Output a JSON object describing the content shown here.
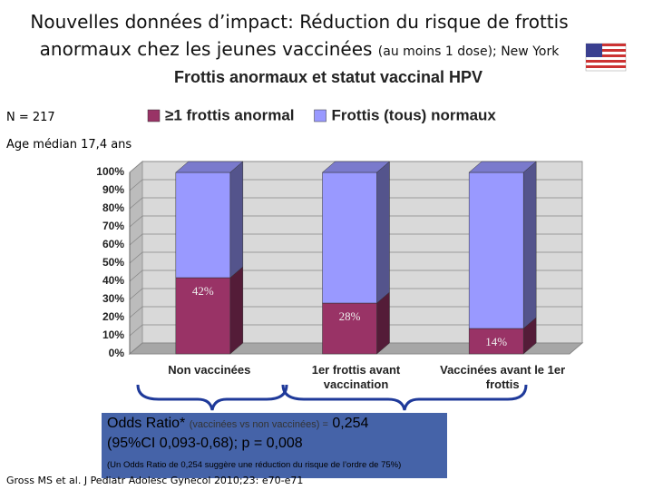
{
  "slide": {
    "title_line1": "Nouvelles données d’impact: Réduction du risque de frottis",
    "title_line2": "anormaux chez les jeunes vaccinées",
    "title_note": "(au moins 1 dose)",
    "title_place": "; New York",
    "notes": [
      "N = 217",
      "Age médian 17,4 ans"
    ],
    "odds_box": {
      "label": "Odds Ratio*",
      "comparison": "(vaccinées  vs non vaccinées) =",
      "value": "0,254",
      "ci": "(95%CI 0,093-0,68); p = 0,008",
      "footnote": "(Un Odds Ratio de 0,254 suggère une réduction du risque de l’ordre de 75%)"
    },
    "citation": "Gross MS et al.  J Pediatr Adolesc Gynecol 2010;23: e70-e71"
  },
  "chart_data": {
    "type": "stacked_bar_3d",
    "title": "Frottis anormaux et statut vaccinal HPV",
    "categories": [
      "Non vaccinées",
      "1er frottis avant vaccination",
      "Vaccinées avant le 1er frottis"
    ],
    "series": [
      {
        "name": "≥1 frottis anormal",
        "color": "#993366",
        "values": [
          42,
          28,
          14
        ],
        "value_labels": [
          "42%",
          "28%",
          "14%"
        ]
      },
      {
        "name": "Frottis (tous) normaux",
        "color": "#9999ff",
        "values": [
          58,
          72,
          86
        ]
      }
    ],
    "ylim": [
      0,
      100
    ],
    "yticks": [
      {
        "value": 0,
        "label": "0%"
      },
      {
        "value": 10,
        "label": "10%"
      },
      {
        "value": 20,
        "label": "20%"
      },
      {
        "value": 30,
        "label": "30%"
      },
      {
        "value": 40,
        "label": "40%"
      },
      {
        "value": 50,
        "label": "50%"
      },
      {
        "value": 60,
        "label": "60%"
      },
      {
        "value": 70,
        "label": "70%"
      },
      {
        "value": 80,
        "label": "80%"
      },
      {
        "value": 90,
        "label": "90%"
      },
      {
        "value": 100,
        "label": "100%"
      }
    ],
    "grid": true,
    "legend": "top"
  }
}
